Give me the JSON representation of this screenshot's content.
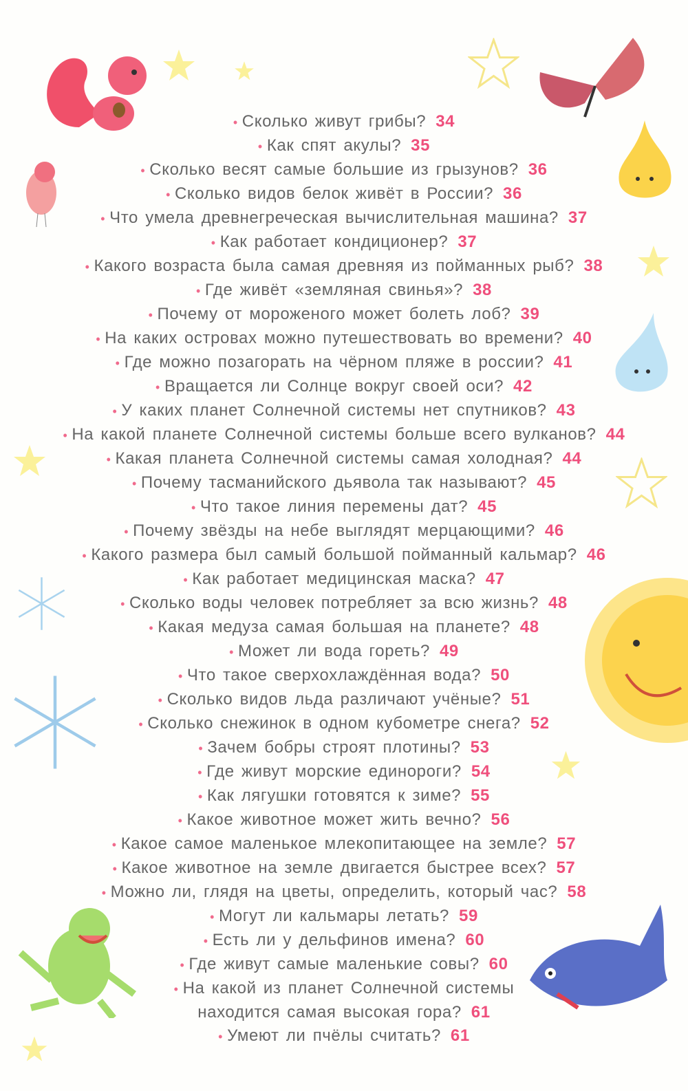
{
  "entries": [
    {
      "q": "Сколько живут грибы?",
      "p": "34"
    },
    {
      "q": "Как спят акулы?",
      "p": "35"
    },
    {
      "q": "Сколько весят самые большие из грызунов?",
      "p": "36"
    },
    {
      "q": "Сколько видов белок живёт в России?",
      "p": "36"
    },
    {
      "q": "Что умела древнегреческая вычислительная машина?",
      "p": "37"
    },
    {
      "q": "Как работает кондиционер?",
      "p": "37"
    },
    {
      "q": "Какого возраста была самая древняя из пойманных рыб?",
      "p": "38"
    },
    {
      "q": "Где живёт «земляная свинья»?",
      "p": "38"
    },
    {
      "q": "Почему от мороженого может болеть лоб?",
      "p": "39"
    },
    {
      "q": "На каких островах можно путешествовать во времени?",
      "p": "40"
    },
    {
      "q": "Где можно позагорать на чёрном пляже в россии?",
      "p": "41"
    },
    {
      "q": "Вращается ли Солнце вокруг своей оси?",
      "p": "42"
    },
    {
      "q": "У каких планет Солнечной системы нет спутников?",
      "p": "43"
    },
    {
      "q": "На какой планете Солнечной системы больше всего вулканов?",
      "p": "44"
    },
    {
      "q": "Какая планета Солнечной системы самая холодная?",
      "p": "44"
    },
    {
      "q": "Почему тасманийского дьявола так называют?",
      "p": "45"
    },
    {
      "q": "Что такое линия перемены дат?",
      "p": "45"
    },
    {
      "q": "Почему звёзды на небе выглядят мерцающими?",
      "p": "46"
    },
    {
      "q": "Какого размера был самый большой пойманный кальмар?",
      "p": "46"
    },
    {
      "q": "Как работает медицинская маска?",
      "p": "47"
    },
    {
      "q": "Сколько воды человек потребляет за всю жизнь?",
      "p": "48"
    },
    {
      "q": "Какая медуза самая большая на планете?",
      "p": "48"
    },
    {
      "q": "Может ли вода гореть?",
      "p": "49"
    },
    {
      "q": "Что такое сверхохлаждённая вода?",
      "p": "50"
    },
    {
      "q": "Сколько видов льда различают учёные?",
      "p": "51"
    },
    {
      "q": "Сколько снежинок в одном кубометре снега?",
      "p": "52"
    },
    {
      "q": "Зачем бобры строят плотины?",
      "p": "53"
    },
    {
      "q": "Где живут морские единороги?",
      "p": "54"
    },
    {
      "q": "Как лягушки готовятся к зиме?",
      "p": "55"
    },
    {
      "q": "Какое животное может жить вечно?",
      "p": "56"
    },
    {
      "q": "Какое самое маленькое млекопитающее на земле?",
      "p": "57"
    },
    {
      "q": "Какое животное на земле двигается быстрее всех?",
      "p": "57"
    },
    {
      "q": "Можно ли, глядя на цветы, определить, который час?",
      "p": "58"
    },
    {
      "q": "Могут ли кальмары летать?",
      "p": "59"
    },
    {
      "q": "Есть ли у дельфинов имена?",
      "p": "60"
    },
    {
      "q": "Где живут самые маленькие совы?",
      "p": "60"
    },
    {
      "q": "На какой из планет Солнечной системы",
      "q2": "находится самая высокая гора?",
      "p": "61"
    },
    {
      "q": "Умеют ли пчёлы считать?",
      "p": "61"
    }
  ],
  "colors": {
    "text": "#666666",
    "page_number": "#ef4f7c",
    "bullet": "#f06a8c"
  },
  "icons": [
    "squirrel-illustration",
    "star-icon",
    "butterfly-illustration",
    "bird-illustration",
    "flame-character",
    "water-drop-character",
    "snowflake-icon",
    "sun-character",
    "frog-illustration",
    "shark-illustration"
  ]
}
